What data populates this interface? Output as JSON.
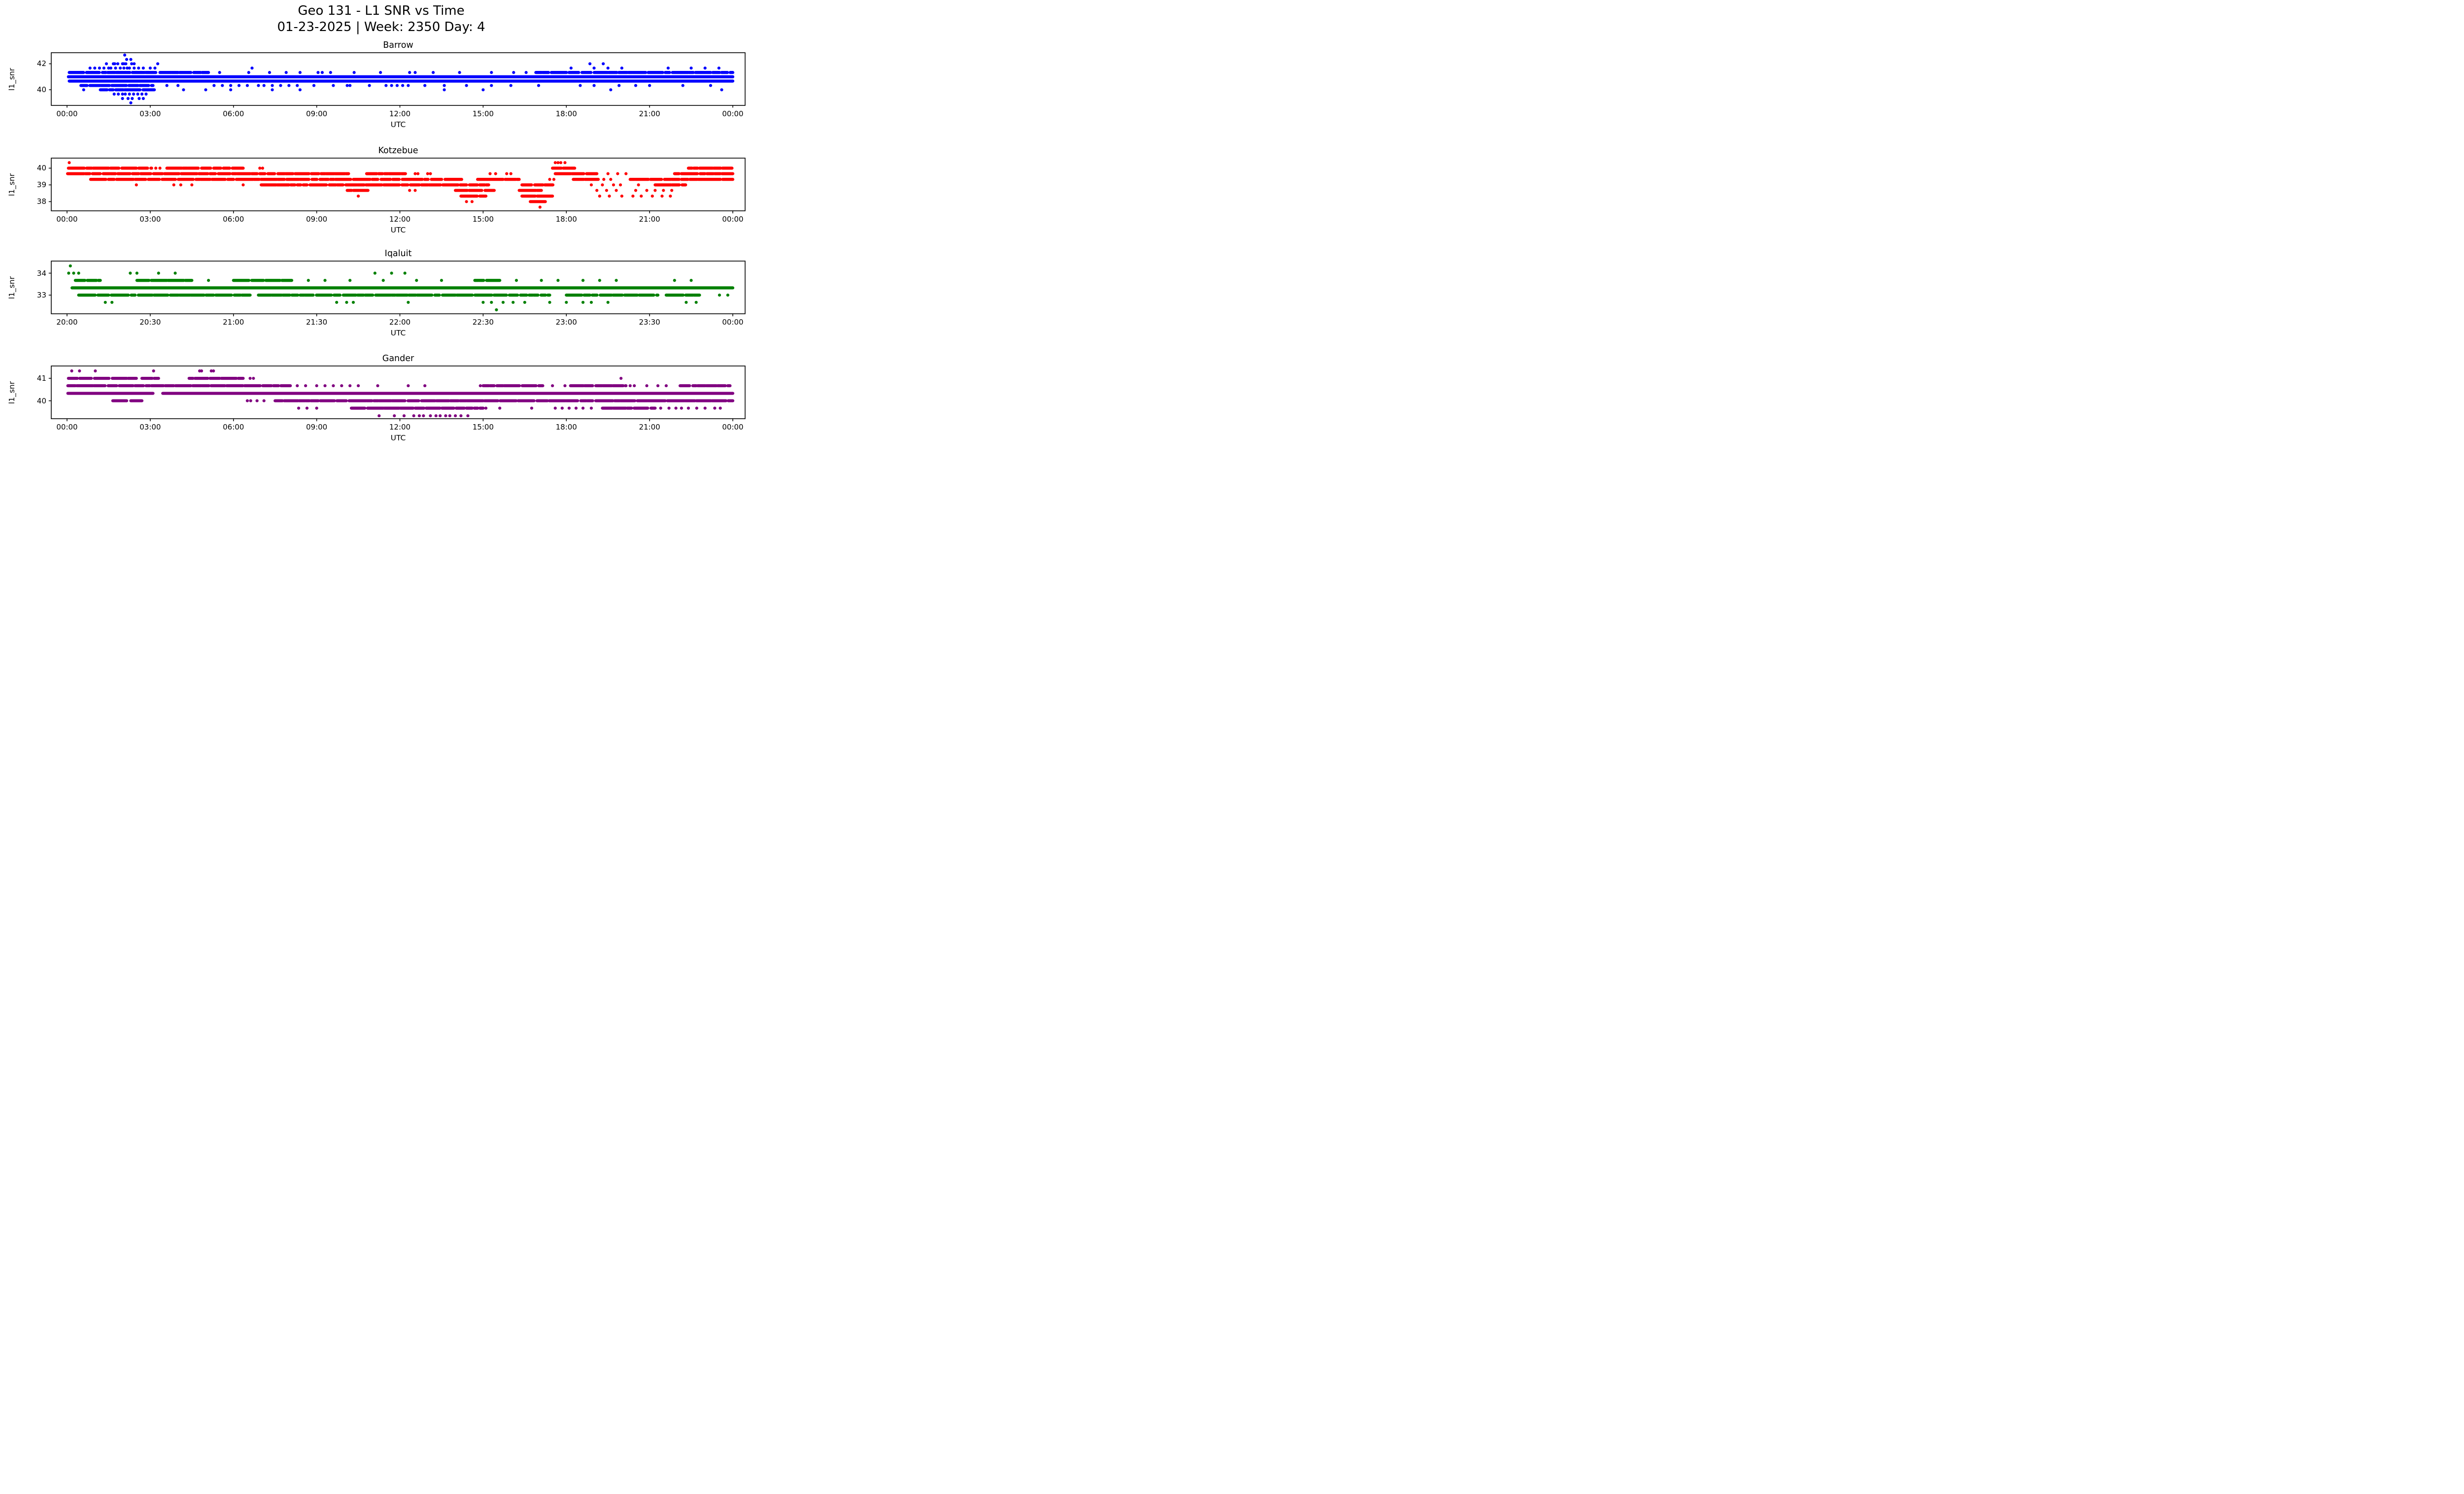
{
  "figure": {
    "title_line1": "Geo 131 - L1 SNR vs Time",
    "title_line2": "01-23-2025 | Week: 2350 Day: 4",
    "background_color": "#ffffff",
    "text_color": "#000000"
  },
  "chart_data": [
    {
      "type": "scatter",
      "title": "Barrow",
      "color": "#0000ff",
      "xlabel": "UTC",
      "ylabel": "l1_snr",
      "x_range_hours": [
        0,
        24
      ],
      "xtick_hours": [
        0,
        3,
        6,
        9,
        12,
        15,
        18,
        21,
        24
      ],
      "xtick_labels": [
        "00:00",
        "03:00",
        "06:00",
        "09:00",
        "12:00",
        "15:00",
        "18:00",
        "21:00",
        "00:00"
      ],
      "ytick_values": [
        40,
        42
      ],
      "ylim": [
        38.8,
        42.85
      ],
      "snr_quantization_db": 0.333,
      "bands": [
        {
          "y": 42.67,
          "points": [
            2.08
          ]
        },
        {
          "y": 42.33,
          "points": [
            2.15,
            2.3
          ]
        },
        {
          "y": 42.0,
          "points": [
            1.42,
            1.67,
            1.72,
            1.83,
            2.0,
            2.05,
            2.12,
            2.33,
            2.42,
            3.27,
            18.85,
            19.33
          ]
        },
        {
          "y": 41.67,
          "points": [
            0.83,
            1.0,
            1.17,
            1.33,
            1.5,
            1.58,
            1.75,
            1.92,
            2.05,
            2.17,
            2.25,
            2.42,
            2.58,
            2.75,
            3.0,
            3.17,
            6.67,
            18.17,
            19.0,
            19.5,
            20.0,
            21.67,
            22.5,
            23.0,
            23.5
          ]
        },
        {
          "y": 41.33,
          "broken": [
            [
              0.08,
              3.2
            ],
            [
              3.35,
              5.1
            ],
            [
              16.9,
              24.0
            ]
          ],
          "points": [
            5.5,
            6.55,
            7.3,
            7.9,
            8.4,
            9.05,
            9.2,
            9.5,
            10.35,
            11.3,
            12.35,
            12.55,
            13.2,
            14.15,
            15.3,
            16.1,
            16.55
          ]
        },
        {
          "y": 41.0,
          "dense": [
            [
              0.05,
              24.0
            ]
          ]
        },
        {
          "y": 40.67,
          "dense": [
            [
              0.08,
              24.0
            ]
          ]
        },
        {
          "y": 40.33,
          "broken": [
            [
              0.5,
              3.1
            ]
          ],
          "points": [
            3.6,
            4.0,
            5.3,
            5.6,
            5.9,
            6.2,
            6.5,
            6.9,
            7.1,
            7.4,
            7.7,
            8.0,
            8.3,
            8.9,
            9.6,
            10.1,
            10.2,
            10.9,
            11.5,
            11.7,
            11.9,
            12.1,
            12.3,
            12.9,
            13.6,
            14.4,
            15.3,
            16.0,
            17.0,
            18.5,
            19.0,
            19.9,
            20.5,
            21.0,
            22.2,
            23.2
          ]
        },
        {
          "y": 40.0,
          "broken": [
            [
              1.2,
              3.15
            ]
          ],
          "points": [
            0.6,
            4.2,
            5.0,
            5.9,
            7.4,
            8.4,
            13.6,
            15.0,
            19.6,
            23.6
          ]
        },
        {
          "y": 39.67,
          "points": [
            1.7,
            1.85,
            2.0,
            2.1,
            2.25,
            2.4,
            2.55,
            2.7,
            2.85
          ]
        },
        {
          "y": 39.33,
          "points": [
            2.0,
            2.2,
            2.35,
            2.6,
            2.75
          ]
        },
        {
          "y": 39.0,
          "points": [
            2.3
          ]
        }
      ]
    },
    {
      "type": "scatter",
      "title": "Kotzebue",
      "color": "#ff0000",
      "xlabel": "UTC",
      "ylabel": "l1_snr",
      "x_range_hours": [
        0,
        24
      ],
      "xtick_hours": [
        0,
        3,
        6,
        9,
        12,
        15,
        18,
        21,
        24
      ],
      "xtick_labels": [
        "00:00",
        "03:00",
        "06:00",
        "09:00",
        "12:00",
        "15:00",
        "18:00",
        "21:00",
        "00:00"
      ],
      "ytick_values": [
        38,
        39,
        40
      ],
      "ylim": [
        37.45,
        40.6
      ],
      "snr_quantization_db": 0.333,
      "bands": [
        {
          "y": 40.33,
          "points": [
            0.08,
            17.6,
            17.7,
            17.8,
            17.95
          ]
        },
        {
          "y": 40.0,
          "broken": [
            [
              0.05,
              3.05
            ],
            [
              3.6,
              6.35
            ],
            [
              17.5,
              18.3
            ],
            [
              22.4,
              24.0
            ]
          ],
          "points": [
            3.2,
            3.35,
            6.95,
            7.05
          ]
        },
        {
          "y": 39.67,
          "broken": [
            [
              0.02,
              10.15
            ],
            [
              10.8,
              12.2
            ],
            [
              17.6,
              19.1
            ],
            [
              21.9,
              24.0
            ]
          ],
          "points": [
            12.55,
            12.65,
            13.0,
            13.1,
            15.25,
            15.45,
            15.85,
            16.0,
            19.5,
            19.85,
            20.15
          ]
        },
        {
          "y": 39.33,
          "broken": [
            [
              0.85,
              14.3
            ],
            [
              14.8,
              16.3
            ],
            [
              18.25,
              19.15
            ],
            [
              20.3,
              24.0
            ]
          ],
          "points": [
            17.4,
            17.55,
            19.35,
            19.6
          ]
        },
        {
          "y": 39.0,
          "broken": [
            [
              7.0,
              9.95
            ],
            [
              10.05,
              15.2
            ],
            [
              16.4,
              17.6
            ],
            [
              21.2,
              22.3
            ]
          ],
          "points": [
            2.5,
            3.85,
            4.1,
            4.5,
            6.35,
            18.9,
            19.3,
            19.7,
            19.95,
            20.6
          ]
        },
        {
          "y": 38.67,
          "broken": [
            [
              10.1,
              10.85
            ],
            [
              14.0,
              15.4
            ],
            [
              16.3,
              17.1
            ]
          ],
          "points": [
            12.35,
            12.55,
            19.1,
            19.45,
            19.8,
            20.5,
            20.9,
            21.2,
            21.5,
            21.8
          ]
        },
        {
          "y": 38.33,
          "broken": [
            [
              14.2,
              15.1
            ],
            [
              16.4,
              17.5
            ]
          ],
          "points": [
            10.5,
            19.2,
            19.55,
            20.0,
            20.4,
            20.7,
            21.1,
            21.45,
            21.75
          ]
        },
        {
          "y": 38.0,
          "broken": [
            [
              16.7,
              17.3
            ]
          ],
          "points": [
            14.4,
            14.6
          ]
        },
        {
          "y": 37.67,
          "points": [
            17.05
          ]
        }
      ]
    },
    {
      "type": "scatter",
      "title": "Iqaluit",
      "color": "#008000",
      "xlabel": "UTC",
      "ylabel": "l1_snr",
      "x_range_hours": [
        20,
        24
      ],
      "xtick_hours": [
        20,
        20.5,
        21,
        21.5,
        22,
        22.5,
        23,
        23.5,
        24
      ],
      "xtick_labels": [
        "20:00",
        "20:30",
        "21:00",
        "21:30",
        "22:00",
        "22:30",
        "23:00",
        "23:30",
        "00:00"
      ],
      "ytick_values": [
        33,
        34
      ],
      "ylim": [
        32.15,
        34.55
      ],
      "snr_quantization_db": 0.333,
      "bands": [
        {
          "y": 34.33,
          "points": [
            20.02
          ]
        },
        {
          "y": 34.0,
          "points": [
            20.01,
            20.04,
            20.07,
            20.38,
            20.42,
            20.55,
            20.65,
            21.85,
            21.95,
            22.03
          ]
        },
        {
          "y": 33.67,
          "broken": [
            [
              20.05,
              20.2
            ],
            [
              20.42,
              20.75
            ],
            [
              21.0,
              21.35
            ],
            [
              22.45,
              22.6
            ]
          ],
          "points": [
            20.85,
            21.45,
            21.55,
            21.7,
            21.9,
            22.1,
            22.25,
            22.7,
            22.85,
            22.95,
            23.1,
            23.2,
            23.3,
            23.65,
            23.75
          ]
        },
        {
          "y": 33.33,
          "dense": [
            [
              20.03,
              24.0
            ]
          ]
        },
        {
          "y": 33.0,
          "broken": [
            [
              20.07,
              21.1
            ],
            [
              21.15,
              22.9
            ],
            [
              23.0,
              23.55
            ],
            [
              23.6,
              23.8
            ]
          ],
          "points": [
            23.92,
            23.97
          ]
        },
        {
          "y": 32.67,
          "points": [
            20.23,
            20.27,
            21.62,
            21.68,
            21.72,
            22.05,
            22.5,
            22.55,
            22.62,
            22.68,
            22.75,
            22.9,
            23.0,
            23.1,
            23.15,
            23.25,
            23.72,
            23.78
          ]
        },
        {
          "y": 32.33,
          "points": [
            22.58
          ]
        }
      ]
    },
    {
      "type": "scatter",
      "title": "Gander",
      "color": "#800080",
      "xlabel": "UTC",
      "ylabel": "l1_snr",
      "x_range_hours": [
        0,
        24
      ],
      "xtick_hours": [
        0,
        3,
        6,
        9,
        12,
        15,
        18,
        21,
        24
      ],
      "xtick_labels": [
        "00:00",
        "03:00",
        "06:00",
        "09:00",
        "12:00",
        "15:00",
        "18:00",
        "21:00",
        "00:00"
      ],
      "ytick_values": [
        40,
        41
      ],
      "ylim": [
        39.2,
        41.55
      ],
      "snr_quantization_db": 0.333,
      "bands": [
        {
          "y": 41.33,
          "points": [
            0.17,
            0.45,
            1.02,
            3.12,
            4.78,
            4.85,
            5.2,
            5.28
          ]
        },
        {
          "y": 41.0,
          "broken": [
            [
              0.05,
              2.5
            ],
            [
              2.7,
              3.3
            ],
            [
              4.4,
              6.35
            ]
          ],
          "points": [
            6.6,
            6.72,
            19.97
          ]
        },
        {
          "y": 40.67,
          "broken": [
            [
              0.03,
              8.05
            ],
            [
              15.0,
              17.15
            ],
            [
              18.15,
              20.15
            ],
            [
              22.1,
              23.9
            ]
          ],
          "points": [
            8.3,
            8.6,
            9.0,
            9.3,
            9.6,
            9.9,
            10.2,
            10.5,
            11.2,
            12.3,
            12.9,
            14.9,
            17.5,
            17.95,
            20.3,
            20.45,
            20.9,
            21.3,
            21.6
          ]
        },
        {
          "y": 40.33,
          "dense": [
            [
              0.03,
              3.1
            ],
            [
              3.45,
              24.0
            ]
          ]
        },
        {
          "y": 40.0,
          "broken": [
            [
              1.65,
              2.15
            ],
            [
              2.3,
              2.7
            ],
            [
              7.5,
              24.0
            ]
          ],
          "points": [
            6.5,
            6.62,
            6.85,
            7.1
          ]
        },
        {
          "y": 39.67,
          "broken": [
            [
              10.25,
              15.0
            ],
            [
              19.3,
              21.2
            ]
          ],
          "points": [
            8.35,
            8.65,
            9.0,
            15.1,
            15.6,
            16.75,
            17.6,
            17.85,
            18.1,
            18.35,
            18.6,
            18.9,
            21.4,
            21.7,
            21.95,
            22.15,
            22.4,
            22.7,
            23.0,
            23.35,
            23.55
          ]
        },
        {
          "y": 39.33,
          "points": [
            11.25,
            11.8,
            12.15,
            12.5,
            12.7,
            12.85,
            13.1,
            13.3,
            13.45,
            13.65,
            13.8,
            14.0,
            14.2,
            14.45
          ]
        }
      ]
    }
  ]
}
